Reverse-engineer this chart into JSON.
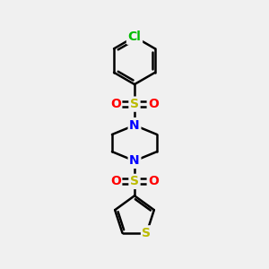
{
  "bg_color": "#f0f0f0",
  "bond_color": "#000000",
  "bond_width": 1.8,
  "atom_colors": {
    "Cl": "#00bb00",
    "N": "#0000ff",
    "S": "#bbbb00",
    "O": "#ff0000",
    "C": "#000000"
  },
  "font_sizes": {
    "Cl": 10,
    "N": 10,
    "S": 10,
    "O": 10
  },
  "figsize": [
    3.0,
    3.0
  ],
  "dpi": 100
}
